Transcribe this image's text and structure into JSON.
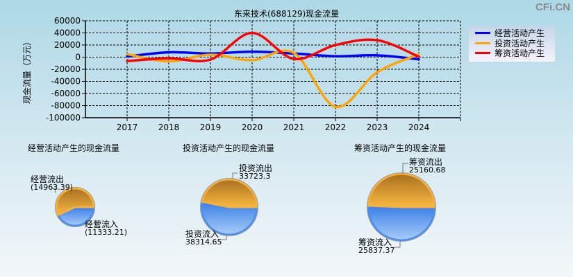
{
  "watermark": "CFi.CN",
  "chart_data": [
    {
      "type": "line",
      "title": "东来技术(688129)现金流量",
      "xlabel": "",
      "ylabel": "现金流量（万元）",
      "x": [
        "2017",
        "2018",
        "2019",
        "2020",
        "2021",
        "2022",
        "2023",
        "2024"
      ],
      "ylim": [
        -100000,
        60000
      ],
      "yticks": [
        60000,
        40000,
        20000,
        0,
        -20000,
        -40000,
        -60000,
        -80000,
        -100000
      ],
      "grid": true,
      "legend_position": "right",
      "series": [
        {
          "name": "经营活动产生",
          "color": "#0000ff",
          "values": [
            1000,
            8000,
            6000,
            9000,
            6000,
            1500,
            3000,
            -3600
          ]
        },
        {
          "name": "投资活动产生",
          "color": "#ffa500",
          "values": [
            5000,
            -7000,
            4000,
            -5000,
            7000,
            -82000,
            -25000,
            4600
          ]
        },
        {
          "name": "筹资活动产生",
          "color": "#ff0000",
          "values": [
            -6500,
            -2000,
            -4000,
            40000,
            -3000,
            20000,
            28000,
            700
          ]
        }
      ]
    },
    {
      "type": "pie",
      "title": "经营活动产生的现金流量",
      "slices": [
        {
          "label": "经营流出",
          "value": 14963.39,
          "display": "(14963.39)",
          "color": "#f0a830"
        },
        {
          "label": "经营流入",
          "value": 11333.21,
          "display": "(11333.21)",
          "color": "#4a90f0"
        }
      ]
    },
    {
      "type": "pie",
      "title": "投资活动产生的现金流量",
      "slices": [
        {
          "label": "投资流出",
          "value": 33723.3,
          "display": "33723.3",
          "color": "#f0a830"
        },
        {
          "label": "投资流入",
          "value": 38314.65,
          "display": "38314.65",
          "color": "#4a90f0"
        }
      ]
    },
    {
      "type": "pie",
      "title": "筹资活动产生的现金流量",
      "slices": [
        {
          "label": "筹资流出",
          "value": 25160.68,
          "display": "25160.68",
          "color": "#f0a830"
        },
        {
          "label": "筹资流入",
          "value": 25837.37,
          "display": "25837.37",
          "color": "#4a90f0"
        }
      ]
    }
  ]
}
